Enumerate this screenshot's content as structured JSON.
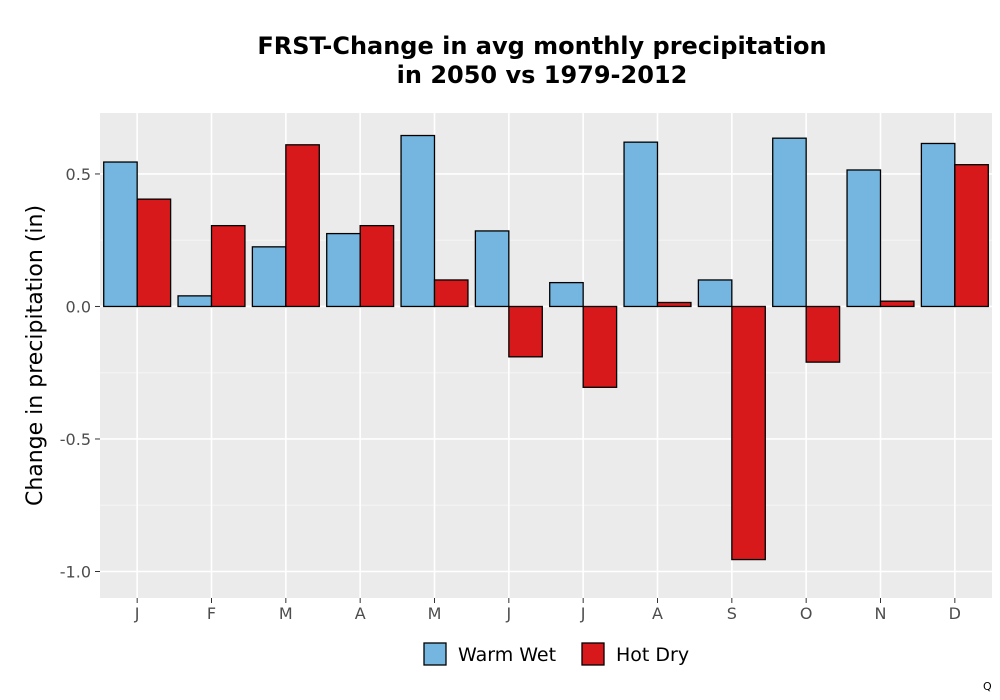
{
  "chart_data": {
    "type": "bar",
    "title_lines": [
      "FRST-Change in avg monthly precipitation",
      "in 2050 vs 1979-2012"
    ],
    "ylabel": "Change in precipitation (in)",
    "xlabel": "",
    "categories": [
      "J",
      "F",
      "M",
      "A",
      "M",
      "J",
      "J",
      "A",
      "S",
      "O",
      "N",
      "D"
    ],
    "ylim": [
      -1.1,
      0.73
    ],
    "yticks": [
      -1.0,
      -0.5,
      0.0,
      0.5
    ],
    "ytick_labels": [
      "-1.0",
      "-0.5",
      "0.0",
      "0.5"
    ],
    "grid": true,
    "legend_position": "bottom",
    "series": [
      {
        "name": "Warm Wet",
        "color": "#74b6e0",
        "values": [
          0.545,
          0.04,
          0.225,
          0.275,
          0.645,
          0.285,
          0.09,
          0.62,
          0.1,
          0.635,
          0.515,
          0.615
        ]
      },
      {
        "name": "Hot Dry",
        "color": "#d7191c",
        "values": [
          0.405,
          0.305,
          0.61,
          0.305,
          0.1,
          -0.19,
          -0.305,
          0.015,
          -0.955,
          -0.21,
          0.02,
          0.535
        ]
      }
    ],
    "corner_mark": "Q"
  }
}
